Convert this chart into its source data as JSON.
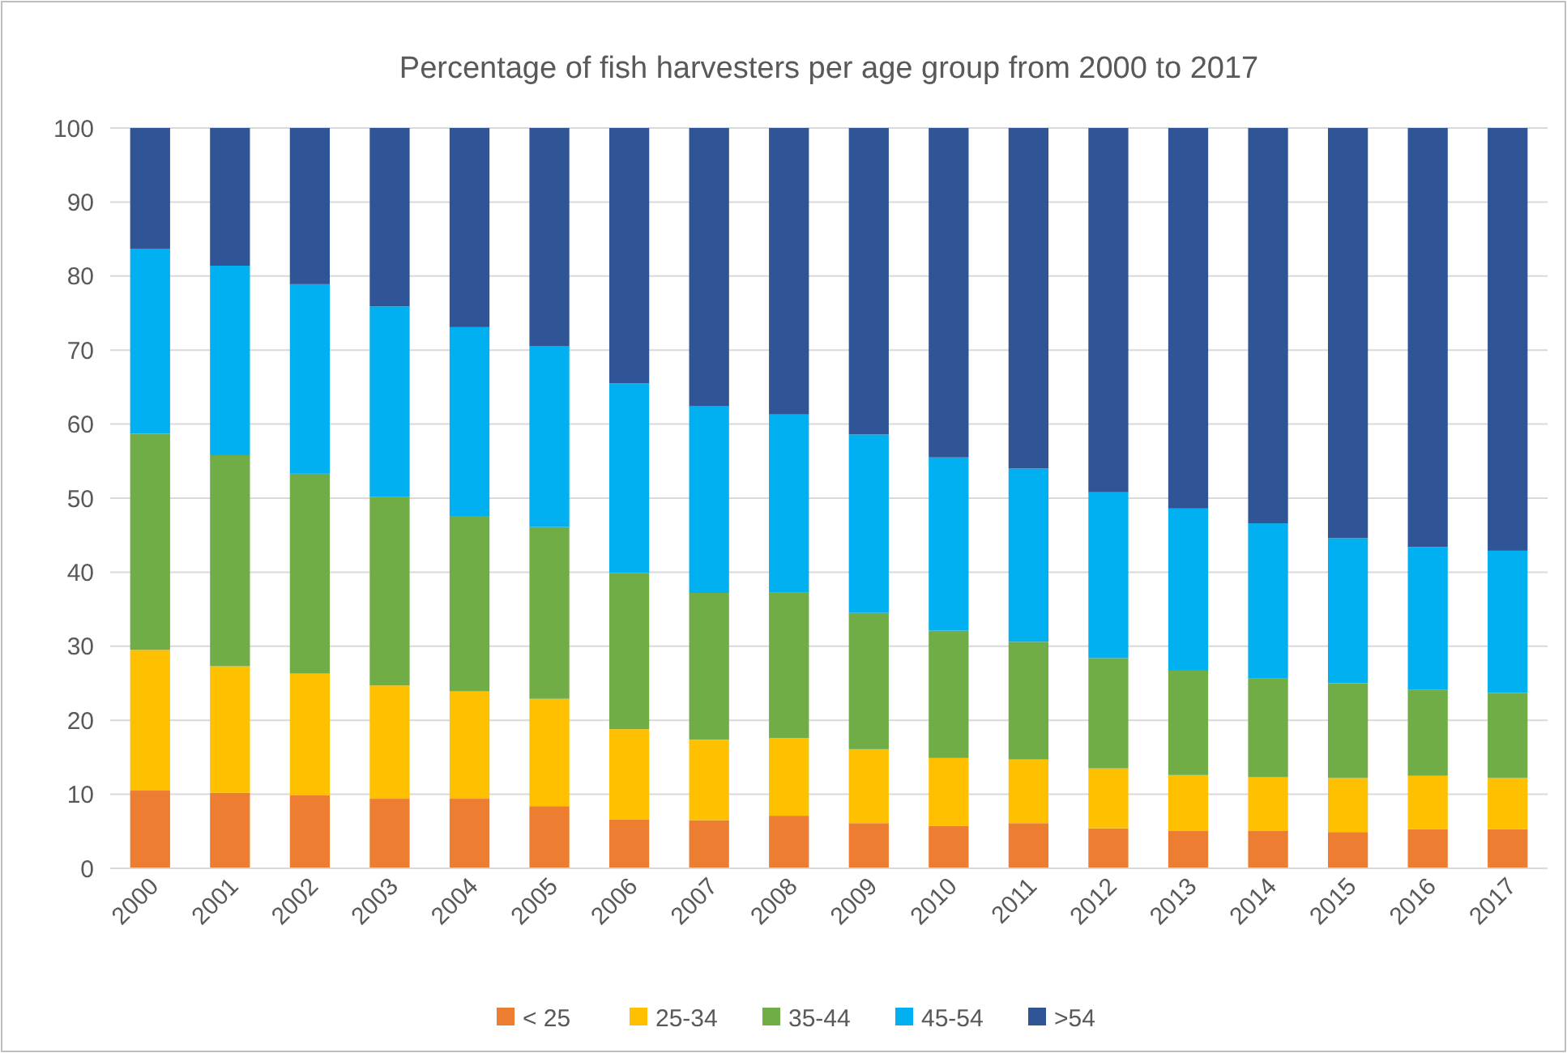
{
  "chart_data": {
    "type": "bar",
    "stacked": true,
    "title": "Percentage of fish harvesters per age group from 2000 to 2017",
    "categories": [
      "2000",
      "2001",
      "2002",
      "2003",
      "2004",
      "2005",
      "2006",
      "2007",
      "2008",
      "2009",
      "2010",
      "2011",
      "2012",
      "2013",
      "2014",
      "2015",
      "2016",
      "2017"
    ],
    "series": [
      {
        "name": "< 25",
        "color": "#ed7d31",
        "values": [
          10.5,
          10.2,
          9.9,
          9.4,
          9.4,
          8.4,
          6.6,
          6.5,
          7.1,
          6.1,
          5.7,
          6.1,
          5.4,
          5.1,
          5.1,
          4.9,
          5.3,
          5.3
        ]
      },
      {
        "name": "25-34",
        "color": "#ffc000",
        "values": [
          19.0,
          17.1,
          16.4,
          15.3,
          14.5,
          14.5,
          12.2,
          10.9,
          10.5,
          10.0,
          9.2,
          8.6,
          8.1,
          7.5,
          7.2,
          7.3,
          7.2,
          6.9
        ]
      },
      {
        "name": "35-44",
        "color": "#70ad47",
        "values": [
          29.2,
          28.5,
          27.0,
          25.5,
          23.6,
          23.2,
          21.1,
          19.8,
          19.7,
          18.4,
          17.2,
          15.9,
          14.9,
          14.1,
          13.4,
          12.8,
          11.6,
          11.5
        ]
      },
      {
        "name": "45-54",
        "color": "#00b0f0",
        "values": [
          25.0,
          25.6,
          25.6,
          25.7,
          25.6,
          24.4,
          25.6,
          25.2,
          24.0,
          24.1,
          23.4,
          23.4,
          22.4,
          21.9,
          20.9,
          19.6,
          19.3,
          19.2
        ]
      },
      {
        "name": ">54",
        "color": "#2f5597",
        "values": [
          16.3,
          18.6,
          21.1,
          24.1,
          26.9,
          29.5,
          34.5,
          37.6,
          38.7,
          41.4,
          44.5,
          46.0,
          49.2,
          51.4,
          53.4,
          55.4,
          56.6,
          57.1
        ]
      }
    ],
    "ylim": [
      0,
      100
    ],
    "yticks": [
      0,
      10,
      20,
      30,
      40,
      50,
      60,
      70,
      80,
      90,
      100
    ],
    "grid": "y",
    "legend": "bottom"
  }
}
